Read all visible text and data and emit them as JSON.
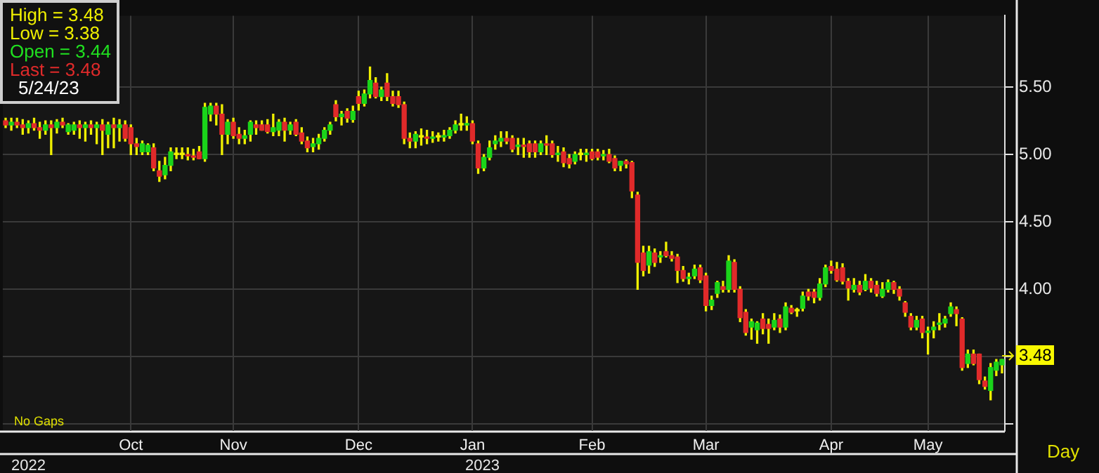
{
  "chart_data": {
    "type": "candlestick",
    "categories": [
      null,
      null,
      null,
      null,
      null,
      null,
      null,
      null,
      null,
      null,
      null,
      null,
      null,
      null,
      null,
      null,
      null,
      null,
      null,
      null,
      null,
      null,
      "Oct",
      null,
      null,
      null,
      null,
      null,
      null,
      null,
      null,
      null,
      null,
      null,
      null,
      null,
      null,
      null,
      null,
      null,
      "Nov",
      null,
      null,
      null,
      null,
      null,
      null,
      null,
      null,
      null,
      null,
      null,
      null,
      null,
      null,
      null,
      null,
      null,
      null,
      null,
      null,
      null,
      "Dec",
      null,
      null,
      null,
      null,
      null,
      null,
      null,
      null,
      null,
      null,
      null,
      null,
      null,
      null,
      null,
      null,
      null,
      null,
      null,
      "Jan",
      null,
      null,
      null,
      null,
      null,
      null,
      null,
      null,
      null,
      null,
      null,
      null,
      null,
      null,
      null,
      null,
      null,
      null,
      null,
      null,
      "Feb",
      null,
      null,
      null,
      null,
      null,
      null,
      null,
      null,
      null,
      null,
      null,
      null,
      null,
      null,
      null,
      null,
      null,
      null,
      null,
      "Mar",
      null,
      null,
      null,
      null,
      null,
      null,
      null,
      null,
      null,
      null,
      null,
      null,
      null,
      null,
      null,
      null,
      null,
      null,
      null,
      null,
      null,
      "Apr",
      null,
      null,
      null,
      null,
      null,
      null,
      null,
      null,
      null,
      null,
      null,
      null,
      null,
      null,
      null,
      null,
      "May",
      null,
      null,
      null,
      null,
      null,
      null,
      null,
      null,
      null,
      null,
      null,
      null,
      null
    ],
    "ohlc": [
      [
        5.25,
        5.27,
        5.2,
        5.22
      ],
      [
        5.22,
        5.27,
        5.18,
        5.24
      ],
      [
        5.24,
        5.27,
        5.2,
        5.22
      ],
      [
        5.22,
        5.26,
        5.15,
        5.2
      ],
      [
        5.2,
        5.25,
        5.16,
        5.23
      ],
      [
        5.23,
        5.27,
        5.18,
        5.2
      ],
      [
        5.2,
        5.24,
        5.12,
        5.18
      ],
      [
        5.18,
        5.25,
        5.15,
        5.22
      ],
      [
        5.22,
        5.25,
        5.0,
        5.2
      ],
      [
        5.2,
        5.26,
        5.16,
        5.24
      ],
      [
        5.24,
        5.27,
        5.2,
        5.22
      ],
      [
        5.17,
        5.23,
        5.15,
        5.22
      ],
      [
        5.18,
        5.24,
        5.15,
        5.22
      ],
      [
        5.22,
        5.25,
        5.12,
        5.2
      ],
      [
        5.2,
        5.24,
        5.1,
        5.22
      ],
      [
        5.22,
        5.25,
        5.15,
        5.2
      ],
      [
        5.2,
        5.24,
        5.08,
        5.22
      ],
      [
        5.22,
        5.26,
        5.0,
        5.18
      ],
      [
        5.15,
        5.24,
        5.05,
        5.22
      ],
      [
        5.22,
        5.27,
        5.05,
        5.2
      ],
      [
        5.2,
        5.26,
        5.1,
        5.22
      ],
      [
        5.22,
        5.25,
        5.1,
        5.12
      ],
      [
        5.2,
        5.22,
        5.0,
        5.08
      ],
      [
        5.08,
        5.12,
        5.0,
        5.06
      ],
      [
        5.02,
        5.1,
        5.0,
        5.08
      ],
      [
        5.02,
        5.08,
        5.0,
        5.07
      ],
      [
        5.05,
        5.08,
        4.88,
        4.9
      ],
      [
        4.88,
        4.95,
        4.8,
        4.84
      ],
      [
        4.85,
        4.98,
        4.82,
        4.92
      ],
      [
        4.92,
        5.05,
        4.88,
        5.02
      ],
      [
        5.0,
        5.05,
        4.97,
        5.0
      ],
      [
        5.0,
        5.05,
        4.97,
        5.0
      ],
      [
        5.0,
        5.05,
        4.96,
        4.99
      ],
      [
        4.99,
        5.04,
        4.96,
        4.98
      ],
      [
        5.02,
        5.06,
        4.97,
        4.97
      ],
      [
        4.97,
        5.38,
        4.95,
        5.35
      ],
      [
        5.3,
        5.38,
        5.25,
        5.36
      ],
      [
        5.36,
        5.38,
        5.22,
        5.3
      ],
      [
        5.3,
        5.37,
        5.0,
        5.15
      ],
      [
        5.15,
        5.26,
        5.08,
        5.24
      ],
      [
        5.24,
        5.27,
        5.12,
        5.14
      ],
      [
        5.15,
        5.2,
        5.08,
        5.12
      ],
      [
        5.12,
        5.18,
        5.08,
        5.14
      ],
      [
        5.15,
        5.25,
        5.1,
        5.24
      ],
      [
        5.22,
        5.25,
        5.15,
        5.2
      ],
      [
        5.22,
        5.25,
        5.18,
        5.18
      ],
      [
        5.22,
        5.26,
        5.16,
        5.17
      ],
      [
        5.17,
        5.3,
        5.14,
        5.2
      ],
      [
        5.18,
        5.26,
        5.14,
        5.24
      ],
      [
        5.24,
        5.27,
        5.1,
        5.18
      ],
      [
        5.18,
        5.24,
        5.15,
        5.22
      ],
      [
        5.24,
        5.26,
        5.14,
        5.15
      ],
      [
        5.16,
        5.2,
        5.08,
        5.1
      ],
      [
        5.1,
        5.13,
        5.02,
        5.05
      ],
      [
        5.06,
        5.12,
        5.02,
        5.08
      ],
      [
        5.08,
        5.15,
        5.04,
        5.12
      ],
      [
        5.12,
        5.2,
        5.1,
        5.18
      ],
      [
        5.18,
        5.24,
        5.15,
        5.22
      ],
      [
        5.37,
        5.4,
        5.25,
        5.28
      ],
      [
        5.28,
        5.32,
        5.22,
        5.3
      ],
      [
        5.32,
        5.34,
        5.24,
        5.27
      ],
      [
        5.26,
        5.36,
        5.24,
        5.32
      ],
      [
        5.43,
        5.47,
        5.33,
        5.38
      ],
      [
        5.38,
        5.48,
        5.36,
        5.45
      ],
      [
        5.45,
        5.65,
        5.42,
        5.55
      ],
      [
        5.53,
        5.57,
        5.42,
        5.43
      ],
      [
        5.43,
        5.5,
        5.4,
        5.48
      ],
      [
        5.53,
        5.6,
        5.4,
        5.43
      ],
      [
        5.43,
        5.47,
        5.36,
        5.38
      ],
      [
        5.43,
        5.47,
        5.35,
        5.37
      ],
      [
        5.37,
        5.39,
        5.08,
        5.12
      ],
      [
        5.12,
        5.16,
        5.05,
        5.1
      ],
      [
        5.1,
        5.17,
        5.05,
        5.15
      ],
      [
        5.13,
        5.19,
        5.07,
        5.13
      ],
      [
        5.13,
        5.18,
        5.08,
        5.12
      ],
      [
        5.12,
        5.17,
        5.09,
        5.13
      ],
      [
        5.13,
        5.16,
        5.1,
        5.13
      ],
      [
        5.13,
        5.18,
        5.1,
        5.14
      ],
      [
        5.14,
        5.2,
        5.12,
        5.18
      ],
      [
        5.18,
        5.25,
        5.16,
        5.22
      ],
      [
        5.22,
        5.3,
        5.18,
        5.22
      ],
      [
        5.22,
        5.28,
        5.18,
        5.23
      ],
      [
        5.23,
        5.25,
        5.08,
        5.1
      ],
      [
        5.08,
        5.1,
        4.86,
        4.9
      ],
      [
        4.9,
        5.0,
        4.88,
        4.98
      ],
      [
        4.98,
        5.1,
        4.96,
        5.05
      ],
      [
        5.08,
        5.14,
        5.04,
        5.1
      ],
      [
        5.1,
        5.17,
        5.06,
        5.12
      ],
      [
        5.12,
        5.17,
        5.08,
        5.1
      ],
      [
        5.12,
        5.14,
        5.02,
        5.04
      ],
      [
        5.06,
        5.12,
        5.0,
        5.07
      ],
      [
        5.07,
        5.12,
        4.98,
        5.06
      ],
      [
        5.08,
        5.1,
        4.98,
        5.02
      ],
      [
        5.08,
        5.1,
        4.98,
        5.02
      ],
      [
        5.02,
        5.1,
        5.0,
        5.08
      ],
      [
        5.08,
        5.14,
        5.0,
        5.07
      ],
      [
        5.08,
        5.1,
        4.98,
        5.0
      ],
      [
        5.0,
        5.06,
        4.95,
        5.01
      ],
      [
        5.02,
        5.05,
        4.91,
        4.94
      ],
      [
        4.97,
        5.0,
        4.9,
        4.93
      ],
      [
        4.95,
        5.02,
        4.93,
        5.0
      ],
      [
        5.0,
        5.04,
        4.96,
        5.0
      ],
      [
        5.0,
        5.04,
        4.95,
        5.01
      ],
      [
        5.02,
        5.04,
        4.96,
        4.97
      ],
      [
        5.02,
        5.04,
        4.96,
        4.98
      ],
      [
        4.99,
        5.03,
        4.96,
        5.0
      ],
      [
        5.0,
        5.04,
        4.94,
        4.95
      ],
      [
        4.97,
        4.99,
        4.88,
        4.9
      ],
      [
        4.92,
        4.95,
        4.88,
        4.95
      ],
      [
        4.95,
        4.96,
        4.9,
        4.93
      ],
      [
        4.94,
        4.95,
        4.68,
        4.73
      ],
      [
        4.7,
        4.72,
        4.0,
        4.2
      ],
      [
        4.27,
        4.32,
        4.1,
        4.14
      ],
      [
        4.18,
        4.32,
        4.12,
        4.28
      ],
      [
        4.27,
        4.3,
        4.17,
        4.2
      ],
      [
        4.24,
        4.28,
        4.2,
        4.25
      ],
      [
        4.28,
        4.35,
        4.24,
        4.25
      ],
      [
        4.25,
        4.28,
        4.21,
        4.23
      ],
      [
        4.24,
        4.26,
        4.05,
        4.14
      ],
      [
        4.14,
        4.17,
        4.06,
        4.08
      ],
      [
        4.08,
        4.12,
        4.04,
        4.09
      ],
      [
        4.1,
        4.18,
        4.08,
        4.15
      ],
      [
        4.16,
        4.18,
        4.05,
        4.07
      ],
      [
        4.1,
        4.12,
        3.84,
        3.88
      ],
      [
        3.88,
        3.95,
        3.85,
        3.92
      ],
      [
        3.97,
        4.06,
        3.94,
        4.05
      ],
      [
        4.02,
        4.06,
        3.98,
        4.0
      ],
      [
        4.0,
        4.25,
        3.98,
        4.21
      ],
      [
        4.2,
        4.22,
        3.98,
        4.0
      ],
      [
        4.0,
        4.02,
        3.76,
        3.79
      ],
      [
        3.83,
        3.85,
        3.66,
        3.68
      ],
      [
        3.72,
        3.78,
        3.63,
        3.76
      ],
      [
        3.7,
        3.76,
        3.6,
        3.75
      ],
      [
        3.78,
        3.82,
        3.67,
        3.71
      ],
      [
        3.74,
        3.78,
        3.6,
        3.71
      ],
      [
        3.72,
        3.82,
        3.7,
        3.77
      ],
      [
        3.78,
        3.81,
        3.68,
        3.72
      ],
      [
        3.72,
        3.9,
        3.7,
        3.87
      ],
      [
        3.86,
        3.88,
        3.82,
        3.83
      ],
      [
        3.84,
        3.86,
        3.8,
        3.84
      ],
      [
        3.86,
        3.98,
        3.84,
        3.95
      ],
      [
        3.98,
        4.0,
        3.92,
        3.95
      ],
      [
        3.98,
        4.0,
        3.9,
        3.94
      ],
      [
        3.94,
        4.08,
        3.92,
        4.04
      ],
      [
        4.04,
        4.18,
        4.02,
        4.16
      ],
      [
        4.17,
        4.21,
        4.12,
        4.14
      ],
      [
        4.15,
        4.2,
        4.06,
        4.07
      ],
      [
        4.16,
        4.19,
        4.04,
        4.06
      ],
      [
        4.06,
        4.08,
        3.92,
        4.01
      ],
      [
        4.0,
        4.08,
        3.98,
        4.03
      ],
      [
        4.03,
        4.06,
        3.96,
        3.98
      ],
      [
        4.0,
        4.11,
        3.99,
        4.06
      ],
      [
        4.06,
        4.08,
        3.98,
        4.01
      ],
      [
        4.03,
        4.06,
        3.95,
        3.97
      ],
      [
        3.95,
        4.05,
        3.94,
        4.0
      ],
      [
        4.0,
        4.07,
        3.98,
        4.05
      ],
      [
        4.05,
        4.06,
        3.97,
        4.0
      ],
      [
        4.0,
        4.02,
        3.92,
        3.95
      ],
      [
        3.9,
        3.91,
        3.8,
        3.83
      ],
      [
        3.8,
        3.82,
        3.7,
        3.72
      ],
      [
        3.72,
        3.8,
        3.7,
        3.77
      ],
      [
        3.78,
        3.8,
        3.64,
        3.68
      ],
      [
        3.68,
        3.72,
        3.52,
        3.69
      ],
      [
        3.7,
        3.76,
        3.64,
        3.72
      ],
      [
        3.74,
        3.82,
        3.7,
        3.75
      ],
      [
        3.75,
        3.8,
        3.72,
        3.78
      ],
      [
        3.82,
        3.9,
        3.8,
        3.87
      ],
      [
        3.85,
        3.87,
        3.73,
        3.82
      ],
      [
        3.78,
        3.79,
        3.4,
        3.42
      ],
      [
        3.45,
        3.55,
        3.42,
        3.52
      ],
      [
        3.52,
        3.55,
        3.44,
        3.45
      ],
      [
        3.52,
        3.52,
        3.3,
        3.33
      ],
      [
        3.32,
        3.35,
        3.26,
        3.28
      ],
      [
        3.25,
        3.45,
        3.18,
        3.42
      ],
      [
        3.4,
        3.48,
        3.36,
        3.46
      ],
      [
        3.44,
        3.48,
        3.38,
        3.48
      ]
    ],
    "ylim": [
      2.95,
      6.03
    ],
    "yticks": [
      {
        "value": 3.0,
        "label": null
      },
      {
        "value": 3.5,
        "label": null
      },
      {
        "value": 4.0,
        "label": "4.00"
      },
      {
        "value": 4.5,
        "label": "4.50"
      },
      {
        "value": 5.0,
        "label": "5.00"
      },
      {
        "value": 5.5,
        "label": "5.50"
      }
    ],
    "grid": true,
    "annotations": [
      "2022",
      "No Gaps",
      "Day",
      "2023",
      "3.48",
      "High = 3.48",
      "Low = 3.38",
      "Open = 3.44",
      "Last = 3.48",
      "5/24/23"
    ]
  }
}
